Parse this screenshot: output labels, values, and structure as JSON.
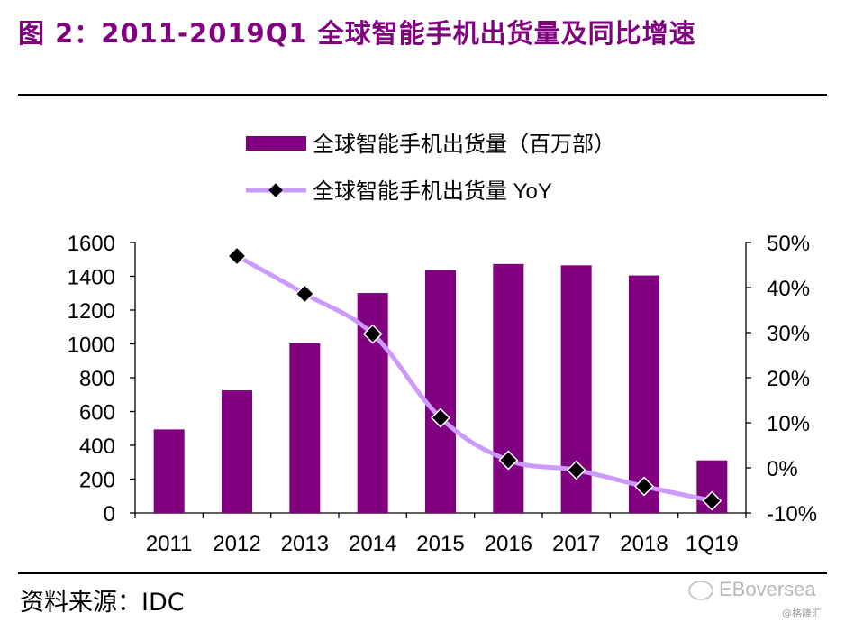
{
  "figure": {
    "title": "图 2：2011-2019Q1 全球智能手机出货量及同比增速",
    "source": "资料来源：IDC",
    "watermark": "EBoversea",
    "watermark_sub": "@格隆汇"
  },
  "colors": {
    "title": "#800080",
    "bar": "#800080",
    "line": "#cc99ff",
    "marker": "#000000"
  },
  "chart_data": {
    "type": "bar",
    "categories": [
      "2011",
      "2012",
      "2013",
      "2014",
      "2015",
      "2016",
      "2017",
      "2018",
      "1Q19"
    ],
    "series": [
      {
        "name": "全球智能手机出货量（百万部）",
        "type": "bar",
        "axis": "left",
        "values": [
          494,
          725,
          1004,
          1301,
          1437,
          1473,
          1465,
          1405,
          311
        ]
      },
      {
        "name": "全球智能手机出货量 YoY",
        "type": "line",
        "axis": "right",
        "values": [
          null,
          0.47,
          0.386,
          0.297,
          0.111,
          0.017,
          -0.005,
          -0.041,
          -0.073
        ]
      }
    ],
    "y_left": {
      "min": 0,
      "max": 1600,
      "ticks": [
        "0",
        "200",
        "400",
        "600",
        "800",
        "1000",
        "1200",
        "1400",
        "1600"
      ]
    },
    "y_right": {
      "min": -0.1,
      "max": 0.5,
      "ticks": [
        "-10%",
        "0%",
        "10%",
        "20%",
        "30%",
        "40%",
        "50%"
      ]
    },
    "grid": false,
    "legend": "top-left"
  }
}
